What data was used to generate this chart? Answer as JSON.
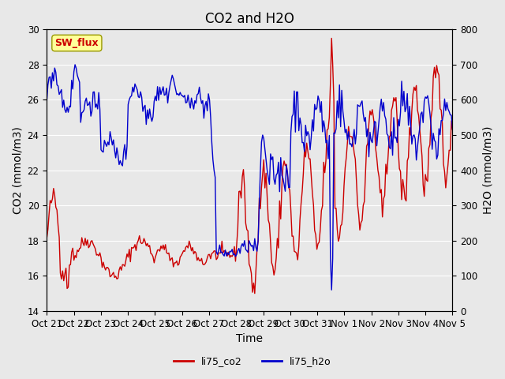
{
  "title": "CO2 and H2O",
  "xlabel": "Time",
  "ylabel_left": "CO2 (mmol/m3)",
  "ylabel_right": "H2O (mmol/m3)",
  "ylim_left": [
    14,
    30
  ],
  "ylim_right": [
    0,
    800
  ],
  "yticks_left": [
    14,
    16,
    18,
    20,
    22,
    24,
    26,
    28,
    30
  ],
  "yticks_right": [
    0,
    100,
    200,
    300,
    400,
    500,
    600,
    700,
    800
  ],
  "xtick_labels": [
    "Oct 21",
    "Oct 22",
    "Oct 23",
    "Oct 24",
    "Oct 25",
    "Oct 26",
    "Oct 27",
    "Oct 28",
    "Oct 29",
    "Oct 30",
    "Oct 31",
    "Nov 1",
    "Nov 2",
    "Nov 3",
    "Nov 4",
    "Nov 5"
  ],
  "co2_color": "#cc0000",
  "h2o_color": "#0000cc",
  "background_color": "#e8e8e8",
  "plot_bg_color": "#e8e8e8",
  "sw_flux_label": "SW_flux",
  "sw_flux_bg": "#ffff99",
  "sw_flux_border": "#999900",
  "sw_flux_text_color": "#cc0000",
  "legend_co2": "li75_co2",
  "legend_h2o": "li75_h2o",
  "title_fontsize": 12,
  "axis_label_fontsize": 10,
  "tick_fontsize": 8.5,
  "line_width": 1.0
}
